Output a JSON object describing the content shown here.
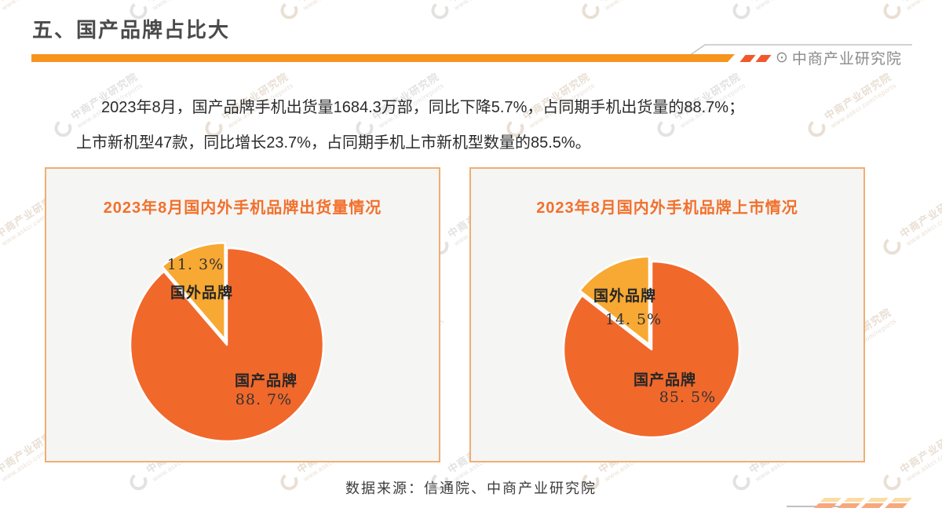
{
  "header": {
    "title": "五、国产品牌占比大",
    "logo": {
      "glyph": "⊙",
      "text": "中商产业研究院"
    }
  },
  "intro": {
    "line1": "2023年8月，国产品牌手机出货量1684.3万部，同比下降5.7%，占同期手机出货量的88.7%；",
    "line2": "上市新机型47款，同比增长23.7%，占同期手机上市新机型数量的85.5%。"
  },
  "chart_data": [
    {
      "type": "pie",
      "title": "2023年8月国内外手机品牌出货量情况",
      "series": [
        {
          "name": "国产品牌",
          "value": 88.7,
          "label": "88. 7%",
          "color": "#F1682B"
        },
        {
          "name": "国外品牌",
          "value": 11.3,
          "label": "11. 3%",
          "color": "#F8A933",
          "exploded": true
        }
      ],
      "start_angle_deg": 0,
      "direction": "clockwise",
      "legend": "none"
    },
    {
      "type": "pie",
      "title": "2023年8月国内外手机品牌上市情况",
      "series": [
        {
          "name": "国产品牌",
          "value": 85.5,
          "label": "85. 5%",
          "color": "#F1682B"
        },
        {
          "name": "国外品牌",
          "value": 14.5,
          "label": "14. 5%",
          "color": "#F8A933",
          "exploded": true
        }
      ],
      "start_angle_deg": 0,
      "direction": "clockwise",
      "legend": "none"
    }
  ],
  "source": "数据来源：信通院、中商产业研究院",
  "watermark": {
    "line1": "中商产业研究院",
    "line2": "www.askci.com/reports"
  },
  "colors": {
    "accent_bar": "#F7941E",
    "accent_dash": "#F1582C",
    "box_border": "#F0AE73",
    "box_bg": "#F5F5F4",
    "pie_main": "#F1682B",
    "pie_minor": "#F8A933",
    "chart_title_text": "#F2702B",
    "heading_text": "#4A4A4A",
    "logo_text": "#8B8B8B"
  }
}
